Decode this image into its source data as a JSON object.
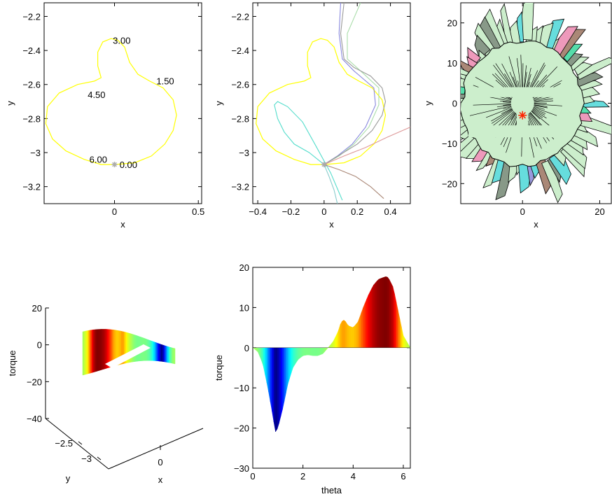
{
  "chart_data": [
    {
      "type": "line",
      "panel": "path-with-labels",
      "xlabel": "x",
      "ylabel": "y",
      "xlim": [
        -0.42,
        0.52
      ],
      "ylim": [
        -3.3,
        -2.12
      ],
      "x_ticks": [
        0,
        0.5
      ],
      "x_tick_labels": [
        "0",
        "0.5"
      ],
      "y_ticks": [
        -2.2,
        -2.4,
        -2.6,
        -2.8,
        -3.0,
        -3.2
      ],
      "y_tick_labels": [
        "−2.2",
        "−2.4",
        "−2.6",
        "−2.8",
        "−3",
        "−3.2"
      ],
      "curve_color": "#ffff00",
      "marker_color": "#aaaaaa",
      "start_point": [
        0,
        -3.07
      ],
      "curve": [
        [
          0,
          -3.07
        ],
        [
          0.12,
          -3.06
        ],
        [
          0.22,
          -3.02
        ],
        [
          0.3,
          -2.95
        ],
        [
          0.35,
          -2.87
        ],
        [
          0.37,
          -2.78
        ],
        [
          0.35,
          -2.69
        ],
        [
          0.29,
          -2.62
        ],
        [
          0.21,
          -2.58
        ],
        [
          0.14,
          -2.54
        ],
        [
          0.09,
          -2.47
        ],
        [
          0.06,
          -2.38
        ],
        [
          0.02,
          -2.34
        ],
        [
          -0.02,
          -2.33
        ],
        [
          -0.07,
          -2.35
        ],
        [
          -0.1,
          -2.41
        ],
        [
          -0.1,
          -2.49
        ],
        [
          -0.08,
          -2.56
        ],
        [
          -0.12,
          -2.58
        ],
        [
          -0.22,
          -2.6
        ],
        [
          -0.33,
          -2.65
        ],
        [
          -0.4,
          -2.73
        ],
        [
          -0.41,
          -2.83
        ],
        [
          -0.37,
          -2.92
        ],
        [
          -0.29,
          -2.99
        ],
        [
          -0.18,
          -3.04
        ],
        [
          -0.08,
          -3.07
        ],
        [
          0,
          -3.07
        ]
      ],
      "annotations": [
        {
          "text": "3.00",
          "x": -0.01,
          "y": -2.36
        },
        {
          "text": "1.50",
          "x": 0.25,
          "y": -2.6
        },
        {
          "text": "4.50",
          "x": -0.16,
          "y": -2.68
        },
        {
          "text": "6.00",
          "x": -0.15,
          "y": -3.06
        },
        {
          "text": "0.00",
          "x": 0.03,
          "y": -3.09
        }
      ]
    },
    {
      "type": "line",
      "panel": "path-with-trajectories",
      "xlabel": "x",
      "ylabel": "y",
      "xlim": [
        -0.43,
        0.52
      ],
      "ylim": [
        -3.3,
        -2.12
      ],
      "x_ticks": [
        -0.4,
        -0.2,
        0,
        0.2,
        0.4
      ],
      "x_tick_labels": [
        "−0.4",
        "−0.2",
        "0",
        "0.2",
        "0.4"
      ],
      "y_ticks": [
        -2.2,
        -2.4,
        -2.6,
        -2.8,
        -3.0,
        -3.2
      ],
      "y_tick_labels": [
        "−2.2",
        "−2.4",
        "−2.6",
        "−2.8",
        "−3",
        "−3.2"
      ],
      "curve_color": "#ffff00",
      "marker_color": "#aaaaaa",
      "start_point": [
        0,
        -3.07
      ],
      "curve": [
        [
          0,
          -3.07
        ],
        [
          0.12,
          -3.06
        ],
        [
          0.22,
          -3.02
        ],
        [
          0.3,
          -2.95
        ],
        [
          0.35,
          -2.87
        ],
        [
          0.37,
          -2.78
        ],
        [
          0.35,
          -2.69
        ],
        [
          0.29,
          -2.62
        ],
        [
          0.21,
          -2.58
        ],
        [
          0.14,
          -2.54
        ],
        [
          0.09,
          -2.47
        ],
        [
          0.06,
          -2.38
        ],
        [
          0.02,
          -2.34
        ],
        [
          -0.02,
          -2.33
        ],
        [
          -0.07,
          -2.35
        ],
        [
          -0.1,
          -2.41
        ],
        [
          -0.1,
          -2.49
        ],
        [
          -0.08,
          -2.56
        ],
        [
          -0.12,
          -2.58
        ],
        [
          -0.22,
          -2.6
        ],
        [
          -0.33,
          -2.65
        ],
        [
          -0.4,
          -2.73
        ],
        [
          -0.41,
          -2.83
        ],
        [
          -0.37,
          -2.92
        ],
        [
          -0.29,
          -2.99
        ],
        [
          -0.18,
          -3.04
        ],
        [
          -0.08,
          -3.07
        ],
        [
          0,
          -3.07
        ]
      ],
      "series": [
        {
          "color": "#8888dd",
          "points": [
            [
              0,
              -3.07
            ],
            [
              0.08,
              -3.02
            ],
            [
              0.17,
              -2.95
            ],
            [
              0.25,
              -2.85
            ],
            [
              0.31,
              -2.72
            ],
            [
              0.3,
              -2.62
            ],
            [
              0.18,
              -2.52
            ],
            [
              0.11,
              -2.45
            ],
            [
              0.09,
              -2.3
            ],
            [
              0.1,
              -2.12
            ]
          ]
        },
        {
          "color": "#aaddaa",
          "points": [
            [
              0,
              -3.07
            ],
            [
              0.09,
              -3.02
            ],
            [
              0.18,
              -2.95
            ],
            [
              0.27,
              -2.85
            ],
            [
              0.33,
              -2.72
            ],
            [
              0.33,
              -2.62
            ],
            [
              0.22,
              -2.52
            ],
            [
              0.14,
              -2.45
            ],
            [
              0.14,
              -2.3
            ],
            [
              0.22,
              -2.12
            ]
          ]
        },
        {
          "color": "#999999",
          "points": [
            [
              0,
              -3.07
            ],
            [
              0.1,
              -3.01
            ],
            [
              0.2,
              -2.95
            ],
            [
              0.29,
              -2.87
            ],
            [
              0.35,
              -2.78
            ],
            [
              0.37,
              -2.7
            ],
            [
              0.35,
              -2.62
            ],
            [
              0.28,
              -2.55
            ],
            [
              0.18,
              -2.5
            ],
            [
              0.12,
              -2.45
            ],
            [
              0.1,
              -2.3
            ],
            [
              0.12,
              -2.12
            ]
          ]
        },
        {
          "color": "#55ddcc",
          "points": [
            [
              0,
              -3.07
            ],
            [
              -0.09,
              -3.0
            ],
            [
              -0.18,
              -2.95
            ],
            [
              -0.24,
              -2.88
            ],
            [
              -0.28,
              -2.8
            ],
            [
              -0.3,
              -2.72
            ],
            [
              -0.28,
              -2.7
            ],
            [
              -0.22,
              -2.73
            ],
            [
              -0.13,
              -2.82
            ],
            [
              -0.05,
              -2.96
            ],
            [
              0.04,
              -3.12
            ],
            [
              0.11,
              -3.28
            ]
          ]
        },
        {
          "color": "#88cccc",
          "points": [
            [
              0,
              -3.07
            ],
            [
              0.03,
              -3.14
            ],
            [
              0.06,
              -3.22
            ],
            [
              0.08,
              -3.3
            ]
          ]
        },
        {
          "color": "#dd9999",
          "points": [
            [
              0,
              -3.07
            ],
            [
              0.12,
              -3.02
            ],
            [
              0.25,
              -2.97
            ],
            [
              0.38,
              -2.91
            ],
            [
              0.52,
              -2.85
            ]
          ]
        },
        {
          "color": "#aa8877",
          "points": [
            [
              0,
              -3.07
            ],
            [
              0.09,
              -3.1
            ],
            [
              0.19,
              -3.14
            ],
            [
              0.28,
              -3.2
            ],
            [
              0.36,
              -3.27
            ]
          ]
        }
      ]
    },
    {
      "type": "scatter",
      "panel": "search-tree",
      "xlabel": "x",
      "ylabel": "y",
      "xlim": [
        -16,
        23
      ],
      "ylim": [
        -25,
        25
      ],
      "x_ticks": [
        0,
        20
      ],
      "x_tick_labels": [
        "0",
        "20"
      ],
      "y_ticks": [
        20,
        10,
        0,
        -10,
        -20
      ],
      "y_tick_labels": [
        "20",
        "10",
        "0",
        "−10",
        "−20"
      ],
      "fill_color": "#cceecc",
      "edge_color": "#000000",
      "marker_color": "#ff2200",
      "marker_point": [
        0,
        -3
      ],
      "accent_colors": [
        "#889988",
        "#ee99bb",
        "#66dddd",
        "#aa8877",
        "#9999dd",
        "#55ddaa"
      ]
    },
    {
      "type": "area",
      "panel": "torque-3d",
      "xlabel": "x",
      "ylabel": "y",
      "zlabel": "torque",
      "zlim": [
        -40,
        20
      ],
      "z_ticks": [
        20,
        0,
        -20,
        -40
      ],
      "z_tick_labels": [
        "20",
        "0",
        "−20",
        "−40"
      ],
      "y_tick_labels": [
        "−2.5",
        "−3"
      ],
      "x_tick_labels": [
        "0"
      ]
    },
    {
      "type": "area",
      "panel": "torque-vs-theta",
      "xlabel": "theta",
      "ylabel": "torque",
      "xlim": [
        0,
        6.28
      ],
      "ylim": [
        -30,
        20
      ],
      "x_ticks": [
        0,
        2,
        4,
        6
      ],
      "x_tick_labels": [
        "0",
        "2",
        "4",
        "6"
      ],
      "y_ticks": [
        20,
        10,
        0,
        -10,
        -20,
        -30
      ],
      "y_tick_labels": [
        "20",
        "10",
        "0",
        "−10",
        "−20",
        "−30"
      ],
      "colormap": "jet",
      "theta": [
        0,
        0.2,
        0.4,
        0.6,
        0.8,
        0.9,
        1.0,
        1.2,
        1.4,
        1.6,
        1.8,
        2.0,
        2.2,
        2.4,
        2.6,
        2.8,
        3.0,
        3.2,
        3.4,
        3.5,
        3.6,
        3.7,
        3.8,
        4.0,
        4.2,
        4.4,
        4.6,
        4.8,
        5.0,
        5.2,
        5.3,
        5.4,
        5.6,
        5.8,
        6.0,
        6.28
      ],
      "torque": [
        0,
        -1,
        -4,
        -10,
        -17,
        -21,
        -20,
        -15,
        -9,
        -5,
        -3,
        -2,
        -1.8,
        -2,
        -2,
        -1.5,
        0,
        1.5,
        4,
        6,
        7,
        6.5,
        5.5,
        5,
        6.5,
        10,
        13,
        15.5,
        17,
        17.5,
        17.7,
        17.5,
        15,
        9,
        3,
        0
      ]
    }
  ]
}
